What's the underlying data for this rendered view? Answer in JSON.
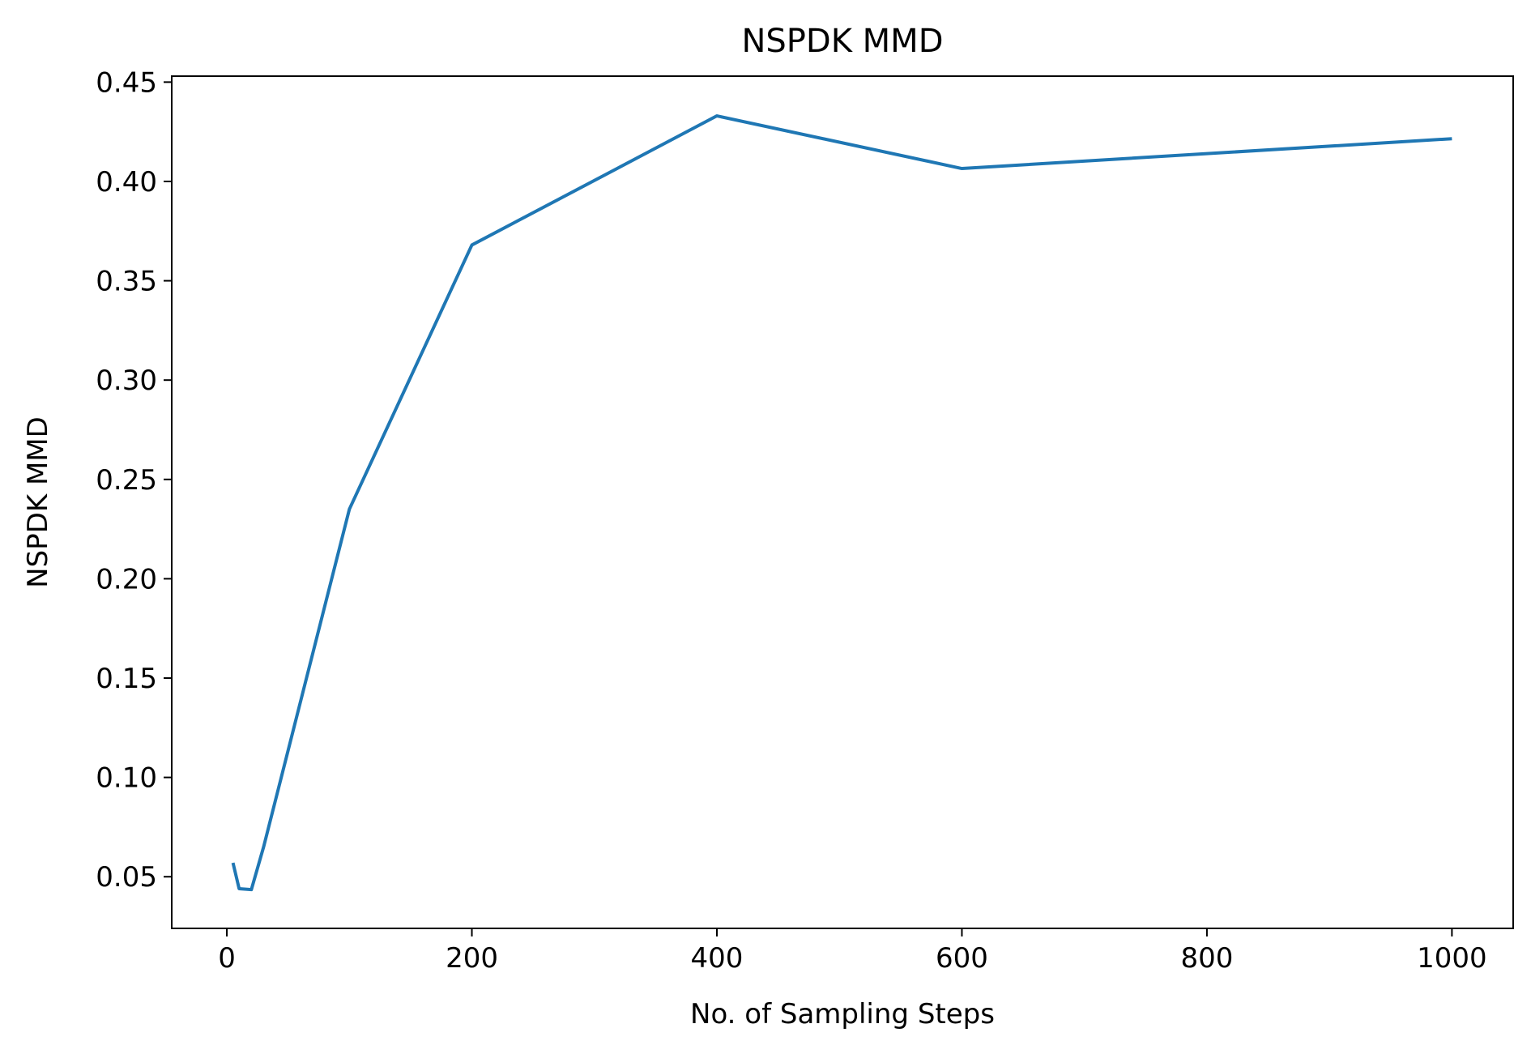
{
  "chart_data": {
    "type": "line",
    "title": "NSPDK MMD",
    "xlabel": "No. of Sampling Steps",
    "ylabel": "NSPDK MMD",
    "xlim": [
      -45,
      1050
    ],
    "ylim": [
      0.024,
      0.453
    ],
    "xticks": [
      0,
      200,
      400,
      600,
      800,
      1000
    ],
    "xtick_labels": [
      "0",
      "200",
      "400",
      "600",
      "800",
      "1000"
    ],
    "yticks": [
      0.05,
      0.1,
      0.15,
      0.2,
      0.25,
      0.3,
      0.35,
      0.4,
      0.45
    ],
    "ytick_labels": [
      "0.05",
      "0.10",
      "0.15",
      "0.20",
      "0.25",
      "0.30",
      "0.35",
      "0.40",
      "0.45"
    ],
    "grid": false,
    "legend": "none",
    "series": [
      {
        "color": "#1f77b4",
        "x": [
          5,
          10,
          20,
          30,
          100,
          200,
          400,
          600,
          1000
        ],
        "y": [
          0.057,
          0.044,
          0.0435,
          0.065,
          0.235,
          0.368,
          0.433,
          0.4065,
          0.4215
        ]
      }
    ]
  }
}
